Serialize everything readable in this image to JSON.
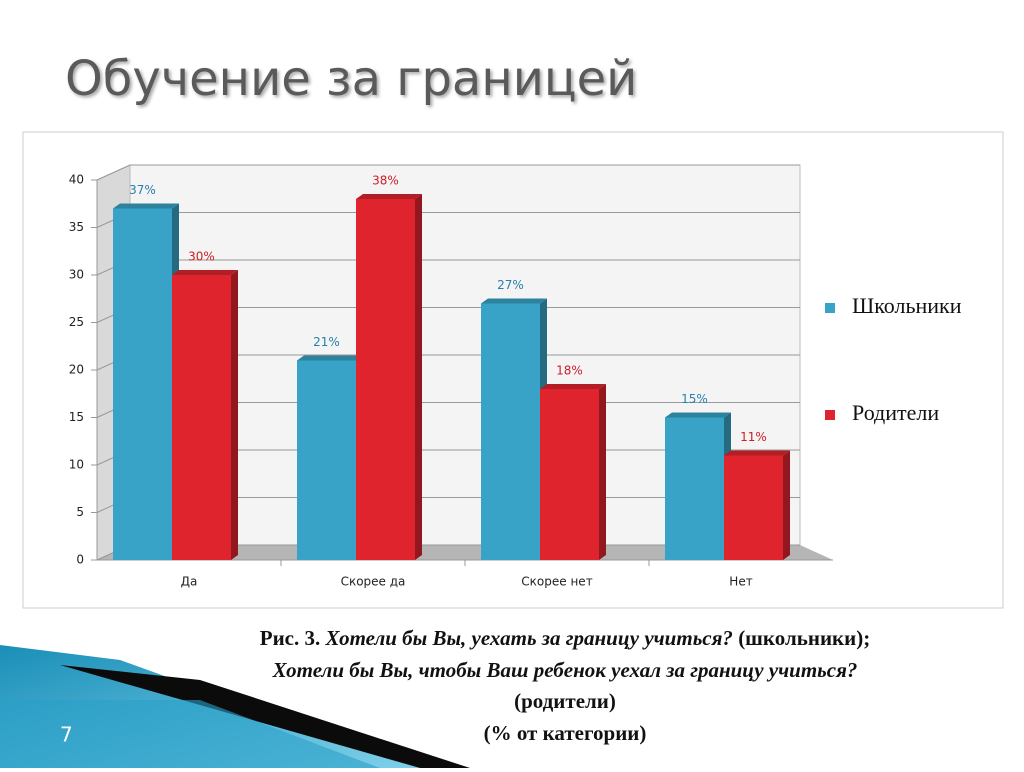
{
  "slide_title": "Обучение за границей",
  "slide_number": "7",
  "chart_data": {
    "type": "bar",
    "categories": [
      "Да",
      "Скорее да",
      "Скорее нет",
      "Нет"
    ],
    "series": [
      {
        "name": "Школьники",
        "color": "#38a3c6",
        "label_color": "#2a7fae",
        "values": [
          37,
          21,
          27,
          15
        ],
        "value_labels": [
          "37%",
          "21%",
          "27%",
          "15%"
        ]
      },
      {
        "name": "Родители",
        "color": "#e0242e",
        "label_color": "#cc1f26",
        "values": [
          30,
          38,
          18,
          11
        ],
        "value_labels": [
          "30%",
          "38%",
          "18%",
          "11%"
        ]
      }
    ],
    "ylim": [
      0,
      40
    ],
    "yticks": [
      0,
      5,
      10,
      15,
      20,
      25,
      30,
      35,
      40
    ],
    "grid": true,
    "legend": "right"
  },
  "caption": {
    "figure": "Рис. 3.",
    "question_students": "Хотели бы Вы, уехать за границу учиться?",
    "students": "(школьники);",
    "question_parents": "Хотели бы Вы, чтобы Ваш ребенок уехал за границу учиться?",
    "parents": "(родители)",
    "note": "(% от категории)"
  }
}
